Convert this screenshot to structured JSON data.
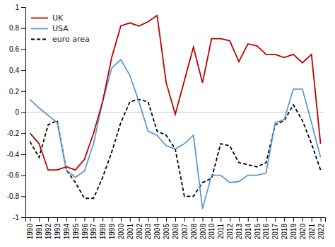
{
  "chart_data": {
    "type": "line",
    "x": [
      1990,
      1991,
      1992,
      1993,
      1994,
      1995,
      1996,
      1997,
      1998,
      1999,
      2000,
      2001,
      2002,
      2003,
      2004,
      2005,
      2006,
      2007,
      2008,
      2009,
      2010,
      2011,
      2012,
      2013,
      2014,
      2015,
      2016,
      2017,
      2018,
      2019,
      2020,
      2021,
      2022
    ],
    "series": [
      {
        "name": "UK",
        "color": "#c00000",
        "line_style": "solid",
        "values": [
          -0.2,
          -0.3,
          -0.55,
          -0.55,
          -0.52,
          -0.55,
          -0.45,
          -0.2,
          0.1,
          0.52,
          0.82,
          0.85,
          0.82,
          0.86,
          0.92,
          0.28,
          -0.02,
          0.3,
          0.62,
          0.28,
          0.7,
          0.7,
          0.68,
          0.48,
          0.65,
          0.63,
          0.55,
          0.55,
          0.52,
          0.55,
          0.47,
          0.55,
          -0.3
        ]
      },
      {
        "name": "USA",
        "color": "#5b9bd5",
        "line_style": "solid",
        "values": [
          0.12,
          0.04,
          -0.03,
          -0.1,
          -0.55,
          -0.62,
          -0.56,
          -0.3,
          0.1,
          0.42,
          0.5,
          0.35,
          0.1,
          -0.18,
          -0.22,
          -0.32,
          -0.35,
          -0.3,
          -0.22,
          -0.92,
          -0.6,
          -0.6,
          -0.67,
          -0.66,
          -0.6,
          -0.6,
          -0.58,
          -0.1,
          -0.07,
          0.22,
          0.22,
          -0.1,
          -0.43
        ]
      },
      {
        "name": "euro area",
        "color": "#000000",
        "line_style": "dashed",
        "values": [
          -0.28,
          -0.43,
          -0.12,
          -0.08,
          -0.55,
          -0.67,
          -0.82,
          -0.82,
          -0.62,
          -0.38,
          -0.1,
          0.1,
          0.12,
          0.1,
          -0.18,
          -0.22,
          -0.35,
          -0.8,
          -0.8,
          -0.67,
          -0.63,
          -0.3,
          -0.32,
          -0.48,
          -0.5,
          -0.52,
          -0.48,
          -0.12,
          -0.08,
          0.07,
          -0.08,
          -0.3,
          -0.55
        ]
      }
    ],
    "xlim": [
      1989.5,
      2022.5
    ],
    "xticks": [
      1990,
      1991,
      1992,
      1993,
      1994,
      1995,
      1996,
      1997,
      1998,
      1999,
      2000,
      2001,
      2002,
      2003,
      2004,
      2005,
      2006,
      2007,
      2008,
      2009,
      2010,
      2011,
      2012,
      2013,
      2014,
      2015,
      2016,
      2017,
      2018,
      2019,
      2020,
      2021,
      2022
    ],
    "ylim": [
      -1.0,
      1.0
    ],
    "yticks": [
      -1,
      -0.8,
      -0.6,
      -0.4,
      -0.2,
      0,
      0.2,
      0.4,
      0.6,
      0.8,
      1
    ],
    "grid": false,
    "legend": "upper-left"
  }
}
